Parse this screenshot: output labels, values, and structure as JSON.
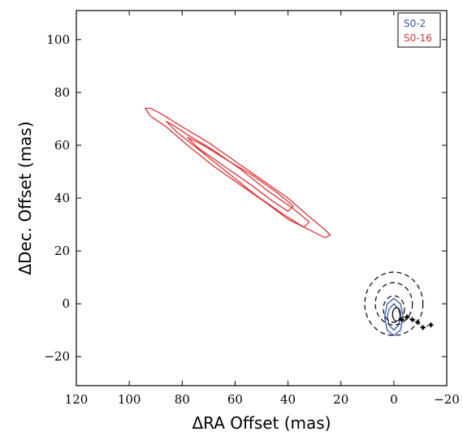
{
  "chart_data": {
    "type": "line",
    "title": "",
    "xlabel": "ΔRA Offset (mas)",
    "ylabel": "ΔDec. Offset (mas)",
    "xlim": [
      120,
      -20
    ],
    "ylim": [
      -31,
      111
    ],
    "x_ticks": [
      120,
      100,
      80,
      60,
      40,
      20,
      0,
      -20
    ],
    "x_tick_labels": [
      "120",
      "100",
      "80",
      "60",
      "40",
      "20",
      "0",
      "−20"
    ],
    "y_ticks": [
      -20,
      0,
      20,
      40,
      60,
      80,
      100
    ],
    "y_tick_labels": [
      "−20",
      "0",
      "20",
      "40",
      "60",
      "80",
      "100"
    ],
    "grid": false,
    "legend_position": "top-right",
    "colors": {
      "S0-2": "#3355aa",
      "S0-16": "#dd3333",
      "reference": "#000000"
    },
    "series": [
      {
        "name": "S0-16",
        "color": "#dd3333",
        "contours": [
          [
            [
              94,
              74
            ],
            [
              92,
              71
            ],
            [
              86,
              67
            ],
            [
              78,
              60
            ],
            [
              68,
              52
            ],
            [
              58,
              45
            ],
            [
              48,
              38
            ],
            [
              40,
              32
            ],
            [
              32,
              28
            ],
            [
              26,
              25
            ],
            [
              24,
              26
            ],
            [
              26,
              28
            ],
            [
              32,
              33
            ],
            [
              40,
              40
            ],
            [
              50,
              47
            ],
            [
              60,
              54
            ],
            [
              70,
              61
            ],
            [
              80,
              67
            ],
            [
              88,
              72
            ],
            [
              92,
              74
            ],
            [
              94,
              74
            ]
          ],
          [
            [
              86,
              69
            ],
            [
              82,
              65
            ],
            [
              72,
              57
            ],
            [
              62,
              49
            ],
            [
              52,
              41
            ],
            [
              42,
              34
            ],
            [
              34,
              29
            ],
            [
              32,
              31
            ],
            [
              38,
              36
            ],
            [
              48,
              43
            ],
            [
              58,
              51
            ],
            [
              68,
              58
            ],
            [
              78,
              64
            ],
            [
              84,
              68
            ],
            [
              86,
              69
            ]
          ],
          [
            [
              78,
              63
            ],
            [
              74,
              59
            ],
            [
              64,
              52
            ],
            [
              54,
              45
            ],
            [
              46,
              39
            ],
            [
              40,
              35
            ],
            [
              38,
              37
            ],
            [
              44,
              42
            ],
            [
              54,
              49
            ],
            [
              64,
              55
            ],
            [
              72,
              60
            ],
            [
              78,
              63
            ]
          ]
        ]
      },
      {
        "name": "S0-2",
        "color": "#3355aa",
        "contours": [
          [
            [
              0,
              2
            ],
            [
              2.5,
              0
            ],
            [
              3.5,
              -5
            ],
            [
              2.5,
              -10
            ],
            [
              0,
              -12
            ],
            [
              -2.5,
              -10
            ],
            [
              -3.5,
              -5
            ],
            [
              -2.5,
              0
            ],
            [
              0,
              2
            ]
          ],
          [
            [
              0,
              0
            ],
            [
              1.8,
              -2
            ],
            [
              2.5,
              -5
            ],
            [
              1.8,
              -8
            ],
            [
              0,
              -10
            ],
            [
              -1.8,
              -8
            ],
            [
              -2.5,
              -5
            ],
            [
              -1.8,
              -2
            ],
            [
              0,
              0
            ]
          ]
        ]
      },
      {
        "name": "reference",
        "color": "#000000",
        "ellipses": [
          {
            "cx": 0,
            "cy": 0,
            "rx": 11,
            "ry": 12,
            "dashed": true
          },
          {
            "cx": 0,
            "cy": 0,
            "rx": 7,
            "ry": 8,
            "dashed": true
          },
          {
            "cx": 0,
            "cy": -2,
            "rx": 4,
            "ry": 5,
            "dashed": true
          },
          {
            "cx": -1,
            "cy": -4,
            "rx": 1.5,
            "ry": 2.5,
            "dashed": false
          }
        ],
        "points": [
          [
            -3,
            -6
          ],
          [
            -5,
            -5
          ],
          [
            -7,
            -6
          ],
          [
            -9,
            -7
          ],
          [
            -11,
            -9
          ],
          [
            -14,
            -8
          ]
        ]
      }
    ]
  }
}
